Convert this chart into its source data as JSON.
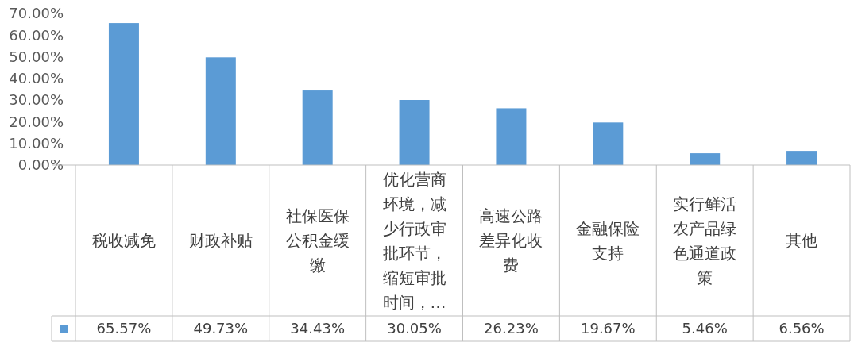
{
  "chart_data": {
    "type": "bar",
    "categories": [
      "税收减免",
      "财政补贴",
      "社保医保公积金缓缴",
      "优化营商环境，减少行政审批环节，缩短审批时间，…",
      "高速公路差异化收费",
      "金融保险支持",
      "实行鲜活农产品绿色通道政策",
      "其他"
    ],
    "series": [
      {
        "color": "#5b9bd5",
        "values": [
          65.57,
          49.73,
          34.43,
          30.05,
          26.23,
          19.67,
          5.46,
          6.56
        ],
        "value_labels": [
          "65.57%",
          "49.73%",
          "34.43%",
          "30.05%",
          "26.23%",
          "19.67%",
          "5.46%",
          "6.56%"
        ]
      }
    ],
    "ylim": [
      0,
      70
    ],
    "yticks": [
      {
        "value": 0,
        "label": "0.00%"
      },
      {
        "value": 10,
        "label": "10.00%"
      },
      {
        "value": 20,
        "label": "20.00%"
      },
      {
        "value": 30,
        "label": "30.00%"
      },
      {
        "value": 40,
        "label": "40.00%"
      },
      {
        "value": 50,
        "label": "50.00%"
      },
      {
        "value": 60,
        "label": "60.00%"
      },
      {
        "value": 70,
        "label": "70.00%"
      }
    ]
  }
}
